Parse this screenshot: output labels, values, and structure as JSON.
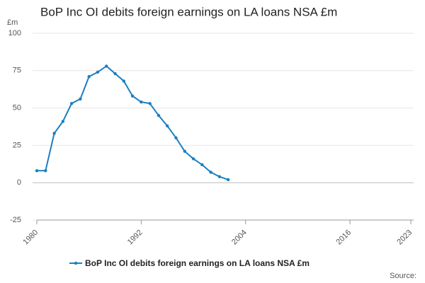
{
  "chart_data": {
    "type": "line",
    "title": "BoP Inc OI debits foreign earnings on LA loans NSA £m",
    "y_label": "£m",
    "source": "Source:",
    "x": [
      1980,
      1981,
      1982,
      1983,
      1984,
      1985,
      1986,
      1987,
      1988,
      1989,
      1990,
      1991,
      1992,
      1993,
      1994,
      1995,
      1996,
      1997,
      1998,
      1999,
      2000,
      2001,
      2002
    ],
    "series": [
      {
        "name": "BoP Inc OI debits foreign earnings on LA loans NSA £m",
        "color": "#1a7fc1",
        "values": [
          8,
          8,
          33,
          41,
          53,
          56,
          71,
          74,
          78,
          73,
          68,
          58,
          54,
          53,
          45,
          38,
          30,
          21,
          16,
          12,
          7,
          4,
          2
        ]
      }
    ],
    "xlim": [
      1980,
      2023
    ],
    "xticks": [
      1980,
      1992,
      2004,
      2016,
      2023
    ],
    "ylim": [
      -25,
      100
    ],
    "yticks": [
      -25,
      0,
      25,
      50,
      75,
      100
    ],
    "grid": true,
    "legend": "bottom"
  }
}
